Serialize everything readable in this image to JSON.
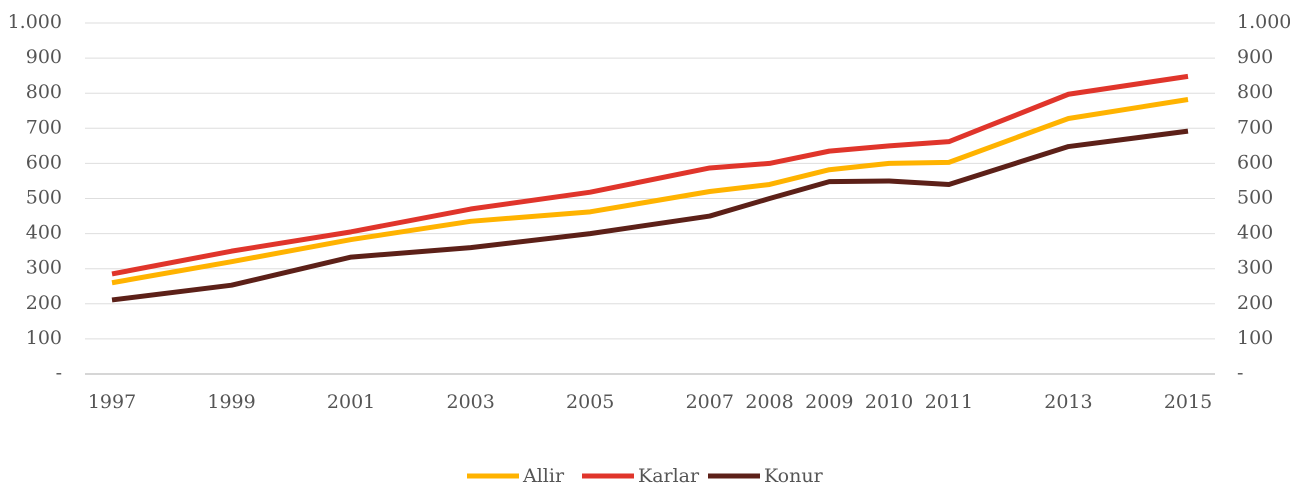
{
  "chart_data": {
    "type": "line",
    "x": [
      1997,
      1999,
      2001,
      2003,
      2005,
      2007,
      2008,
      2009,
      2010,
      2011,
      2013,
      2015
    ],
    "xlim": [
      1997,
      2015
    ],
    "series": [
      {
        "name": "Allir",
        "color": "#ffb300",
        "values": [
          260,
          320,
          383,
          435,
          462,
          520,
          540,
          582,
          600,
          603,
          728,
          782
        ]
      },
      {
        "name": "Karlar",
        "color": "#e0352b",
        "values": [
          285,
          350,
          405,
          470,
          518,
          587,
          600,
          635,
          650,
          662,
          797,
          848
        ]
      },
      {
        "name": "Konur",
        "color": "#5c2018",
        "values": [
          211,
          253,
          333,
          360,
          400,
          450,
          500,
          548,
          550,
          540,
          648,
          692
        ]
      }
    ],
    "ylim": [
      0,
      1000
    ],
    "yticks": [
      {
        "value": 0,
        "label": "-"
      },
      100,
      200,
      300,
      400,
      500,
      600,
      700,
      800,
      900,
      {
        "value": 1000,
        "label": "1.000"
      }
    ],
    "grid": true,
    "legend": "bottom"
  }
}
